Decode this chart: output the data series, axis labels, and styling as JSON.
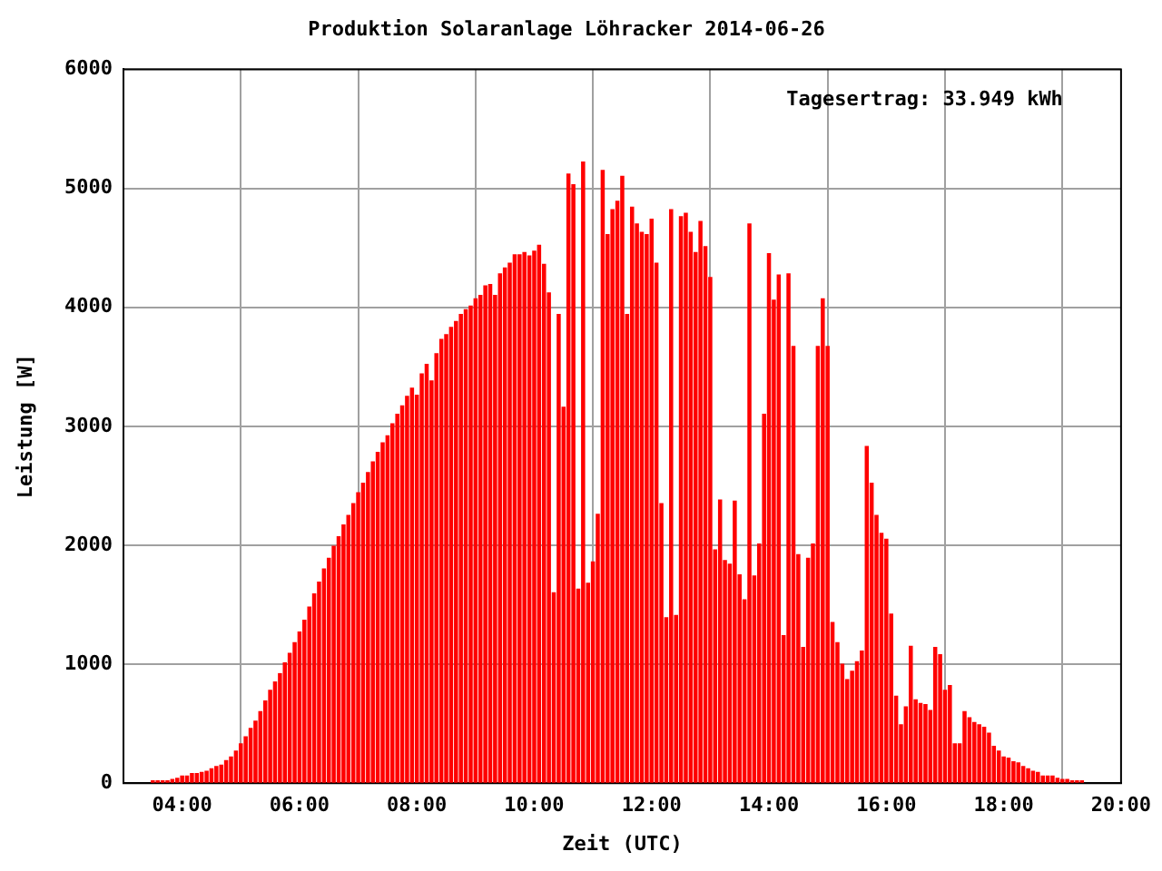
{
  "chart_data": {
    "type": "bar",
    "title": "Produktion Solaranlage Löhracker 2014-06-26",
    "xlabel": "Zeit (UTC)",
    "ylabel": "Leistung [W]",
    "color": "#ff0000",
    "x": [
      3.5,
      3.583,
      3.667,
      3.75,
      3.833,
      3.917,
      4,
      4.083,
      4.167,
      4.25,
      4.333,
      4.417,
      4.5,
      4.583,
      4.667,
      4.75,
      4.833,
      4.917,
      5,
      5.083,
      5.167,
      5.25,
      5.333,
      5.417,
      5.5,
      5.583,
      5.667,
      5.75,
      5.833,
      5.917,
      6,
      6.083,
      6.167,
      6.25,
      6.333,
      6.417,
      6.5,
      6.583,
      6.667,
      6.75,
      6.833,
      6.917,
      7,
      7.083,
      7.167,
      7.25,
      7.333,
      7.417,
      7.5,
      7.583,
      7.667,
      7.75,
      7.833,
      7.917,
      8,
      8.083,
      8.167,
      8.25,
      8.333,
      8.417,
      8.5,
      8.583,
      8.667,
      8.75,
      8.833,
      8.917,
      9,
      9.083,
      9.167,
      9.25,
      9.333,
      9.417,
      9.5,
      9.583,
      9.667,
      9.75,
      9.833,
      9.917,
      10,
      10.083,
      10.167,
      10.25,
      10.333,
      10.417,
      10.5,
      10.583,
      10.667,
      10.75,
      10.833,
      10.917,
      11,
      11.083,
      11.167,
      11.25,
      11.333,
      11.417,
      11.5,
      11.583,
      11.667,
      11.75,
      11.833,
      11.917,
      12,
      12.083,
      12.167,
      12.25,
      12.333,
      12.417,
      12.5,
      12.583,
      12.667,
      12.75,
      12.833,
      12.917,
      13,
      13.083,
      13.167,
      13.25,
      13.333,
      13.417,
      13.5,
      13.583,
      13.667,
      13.75,
      13.833,
      13.917,
      14,
      14.083,
      14.167,
      14.25,
      14.333,
      14.417,
      14.5,
      14.583,
      14.667,
      14.75,
      14.833,
      14.917,
      15,
      15.083,
      15.167,
      15.25,
      15.333,
      15.417,
      15.5,
      15.583,
      15.667,
      15.75,
      15.833,
      15.917,
      16,
      16.083,
      16.167,
      16.25,
      16.333,
      16.417,
      16.5,
      16.583,
      16.667,
      16.75,
      16.833,
      16.917,
      17,
      17.083,
      17.167,
      17.25,
      17.333,
      17.417,
      17.5,
      17.583,
      17.667,
      17.75,
      17.833,
      17.917,
      18,
      18.083,
      18.167,
      18.25,
      18.333,
      18.417,
      18.5,
      18.583,
      18.667,
      18.75,
      18.833,
      18.917,
      19,
      19.083,
      19.167,
      19.25,
      19.333
    ],
    "values": [
      20,
      20,
      20,
      20,
      30,
      40,
      60,
      60,
      80,
      80,
      90,
      100,
      120,
      140,
      150,
      190,
      220,
      270,
      330,
      390,
      460,
      520,
      600,
      690,
      780,
      850,
      920,
      1010,
      1090,
      1180,
      1270,
      1370,
      1480,
      1590,
      1690,
      1800,
      1890,
      1990,
      2070,
      2170,
      2250,
      2350,
      2440,
      2520,
      2610,
      2700,
      2780,
      2860,
      2920,
      3020,
      3100,
      3170,
      3250,
      3320,
      3260,
      3440,
      3520,
      3380,
      3610,
      3730,
      3770,
      3830,
      3880,
      3940,
      3980,
      4010,
      4070,
      4100,
      4180,
      4190,
      4100,
      4280,
      4330,
      4370,
      4440,
      4440,
      4460,
      4430,
      4470,
      4520,
      4360,
      4120,
      1600,
      3940,
      3160,
      5120,
      5030,
      1630,
      5220,
      1680,
      1860,
      2260,
      5150,
      4610,
      4820,
      4890,
      5100,
      3940,
      4840,
      4700,
      4630,
      4610,
      4740,
      4370,
      2350,
      1390,
      4820,
      1410,
      4760,
      4790,
      4630,
      4460,
      4720,
      4510,
      4250,
      1960,
      2380,
      1870,
      1840,
      2370,
      1750,
      1540,
      4700,
      1740,
      2010,
      3100,
      4450,
      4060,
      4270,
      1240,
      4280,
      3670,
      1920,
      1140,
      1890,
      2010,
      3670,
      4070,
      3670,
      1350,
      1180,
      1000,
      870,
      940,
      1020,
      1110,
      2830,
      2520,
      2250,
      2100,
      2050,
      1420,
      730,
      490,
      640,
      1150,
      700,
      670,
      660,
      610,
      1140,
      1080,
      780,
      820,
      330,
      330,
      600,
      550,
      510,
      490,
      470,
      420,
      310,
      270,
      220,
      210,
      180,
      170,
      140,
      120,
      100,
      90,
      60,
      60,
      60,
      40,
      30,
      30,
      20,
      20,
      20
    ],
    "xlim": [
      3,
      20
    ],
    "xticks": [
      {
        "value": 4,
        "label": "04:00"
      },
      {
        "value": 6,
        "label": "06:00"
      },
      {
        "value": 8,
        "label": "08:00"
      },
      {
        "value": 10,
        "label": "10:00"
      },
      {
        "value": 12,
        "label": "12:00"
      },
      {
        "value": 14,
        "label": "14:00"
      },
      {
        "value": 16,
        "label": "16:00"
      },
      {
        "value": 18,
        "label": "18:00"
      },
      {
        "value": 20,
        "label": "20:00"
      }
    ],
    "ylim": [
      0,
      6000
    ],
    "yticks": [
      0,
      1000,
      2000,
      3000,
      4000,
      5000,
      6000
    ],
    "grid": true,
    "annotations": [
      "Tagesertrag: 33.949 kWh"
    ]
  }
}
